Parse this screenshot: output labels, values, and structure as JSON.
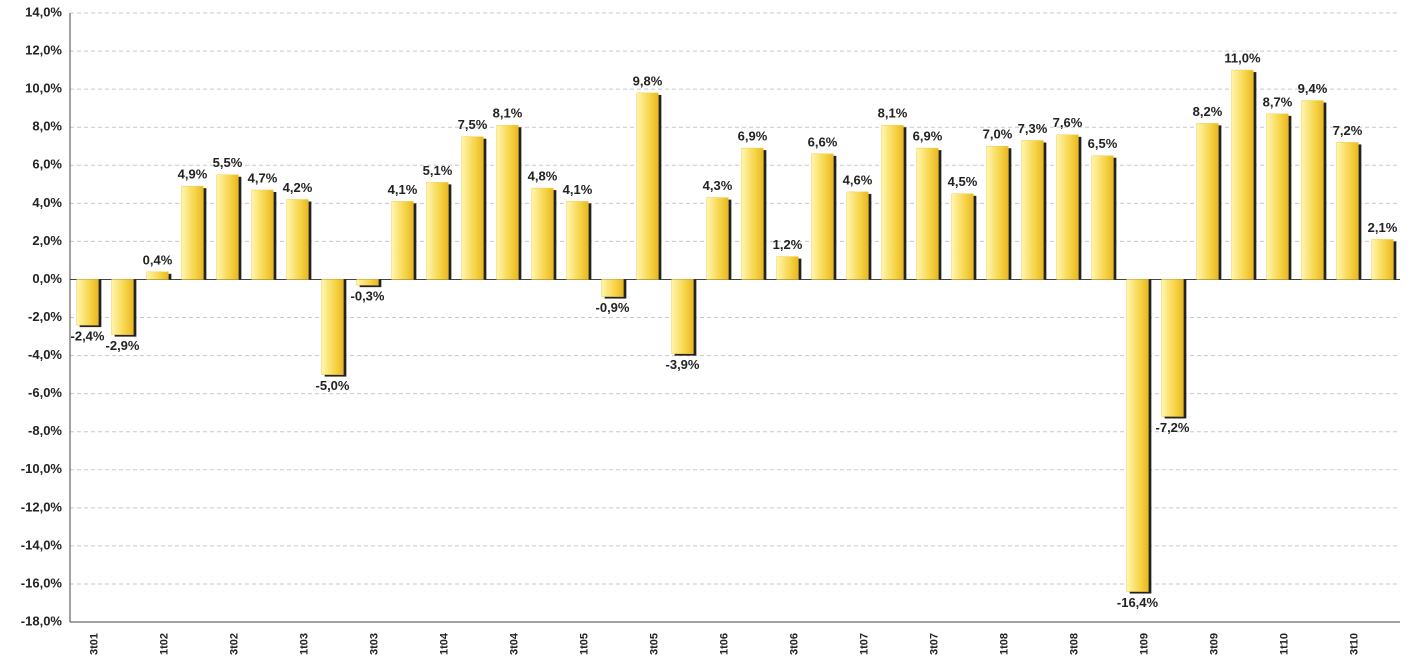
{
  "chart_data": {
    "type": "bar",
    "categories": [
      "3t01",
      null,
      "1t02",
      null,
      "3t02",
      null,
      "1t03",
      null,
      "3t03",
      null,
      "1t04",
      null,
      "3t04",
      null,
      "1t05",
      null,
      "3t05",
      null,
      "1t06",
      null,
      "3t06",
      null,
      "1t07",
      null,
      "3t07",
      null,
      "1t08",
      null,
      "3t08",
      null,
      "1t09",
      null,
      "3t09",
      null,
      "1t10",
      null,
      "3t10",
      null
    ],
    "values": [
      -2.4,
      -2.9,
      0.4,
      4.9,
      5.5,
      4.7,
      4.2,
      -5.0,
      -0.3,
      4.1,
      5.1,
      7.5,
      8.1,
      4.8,
      4.1,
      -0.9,
      9.8,
      -3.9,
      4.3,
      6.9,
      1.2,
      6.6,
      4.6,
      8.1,
      6.9,
      4.5,
      7.0,
      7.3,
      7.6,
      6.5,
      -16.4,
      -7.2,
      8.2,
      11.0,
      8.7,
      9.4,
      7.2,
      2.1
    ],
    "value_labels": [
      "-2,4%",
      "-2,9%",
      "0,4%",
      "4,9%",
      "5,5%",
      "4,7%",
      "4,2%",
      "-5,0%",
      "-0,3%",
      "4,1%",
      "5,1%",
      "7,5%",
      "8,1%",
      "4,8%",
      "4,1%",
      "-0,9%",
      "9,8%",
      "-3,9%",
      "4,3%",
      "6,9%",
      "1,2%",
      "6,6%",
      "4,6%",
      "8,1%",
      "6,9%",
      "4,5%",
      "7,0%",
      "7,3%",
      "7,6%",
      "6,5%",
      "-16,4%",
      "-7,2%",
      "8,2%",
      "11,0%",
      "8,7%",
      "9,4%",
      "7,2%",
      "2,1%"
    ],
    "color": "#f5cc3a",
    "ylim": [
      -18,
      14
    ],
    "yticks": [
      {
        "value": -18,
        "label": "-18,0%"
      },
      {
        "value": -16,
        "label": "-16,0%"
      },
      {
        "value": -14,
        "label": "-14,0%"
      },
      {
        "value": -12,
        "label": "-12,0%"
      },
      {
        "value": -10,
        "label": "-10,0%"
      },
      {
        "value": -8,
        "label": "-8,0%"
      },
      {
        "value": -6,
        "label": "-6,0%"
      },
      {
        "value": -4,
        "label": "-4,0%"
      },
      {
        "value": -2,
        "label": "-2,0%"
      },
      {
        "value": 0,
        "label": "0,0%"
      },
      {
        "value": 2,
        "label": "2,0%"
      },
      {
        "value": 4,
        "label": "4,0%"
      },
      {
        "value": 6,
        "label": "6,0%"
      },
      {
        "value": 8,
        "label": "8,0%"
      },
      {
        "value": 10,
        "label": "10,0%"
      },
      {
        "value": 12,
        "label": "12,0%"
      },
      {
        "value": 14,
        "label": "14,0%"
      }
    ],
    "grid": true
  }
}
